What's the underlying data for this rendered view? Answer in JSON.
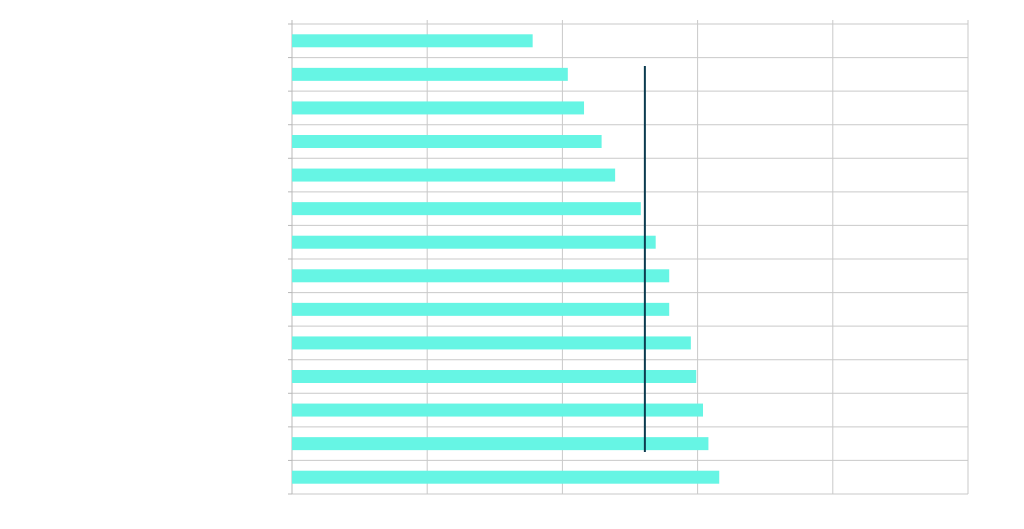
{
  "colors": {
    "bar": "#66F5E4",
    "reference_line": "#0B3B4F",
    "grid": "#C9C9C9",
    "axis": "#B8B8B8",
    "background": "#FFFFFF"
  },
  "chart_data": {
    "type": "bar",
    "orientation": "horizontal",
    "title": "",
    "xlabel": "",
    "ylabel": "",
    "categories": [
      "",
      "",
      "",
      "",
      "",
      "",
      "",
      "",
      "",
      "",
      "",
      "",
      "",
      ""
    ],
    "values": [
      17.8,
      20.4,
      21.6,
      22.9,
      23.9,
      25.8,
      26.9,
      27.9,
      27.9,
      29.5,
      29.9,
      30.4,
      30.8,
      31.6
    ],
    "xlim": [
      0,
      50
    ],
    "x_grid_step": 10,
    "grid": true,
    "reference_line": {
      "value": 26.1,
      "span_rows": [
        1,
        12
      ]
    }
  }
}
